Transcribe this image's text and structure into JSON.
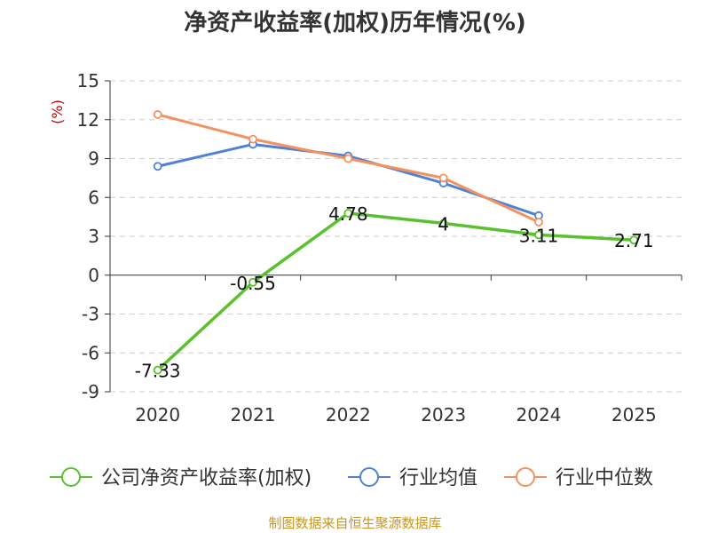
{
  "chart_data": {
    "type": "line",
    "title": "净资产收益率(加权)历年情况(%)",
    "xlabel": "",
    "ylabel": "(%)",
    "categories": [
      "2020",
      "2021",
      "2022",
      "2023",
      "2024",
      "2025"
    ],
    "ylim": [
      -9,
      15
    ],
    "yticks": [
      15,
      12,
      9,
      6,
      3,
      0,
      -3,
      -6,
      -9
    ],
    "grid": true,
    "legend_position": "bottom",
    "series": [
      {
        "name": "公司净资产收益率(加权)",
        "color": "#5ac12e",
        "values": [
          -7.33,
          -0.55,
          4.78,
          4,
          3.11,
          2.71
        ],
        "labels": [
          "-7.33",
          "-0.55",
          "4.78",
          "4",
          "3.11",
          "2.71"
        ]
      },
      {
        "name": "行业均值",
        "color": "#4f81d6",
        "values": [
          8.4,
          10.1,
          9.2,
          7.1,
          4.6,
          null
        ]
      },
      {
        "name": "行业中位数",
        "color": "#f4925f",
        "values": [
          12.4,
          10.5,
          9.0,
          7.5,
          4.1,
          null
        ]
      }
    ]
  },
  "footer": {
    "source": "制图数据来自恒生聚源数据库"
  }
}
